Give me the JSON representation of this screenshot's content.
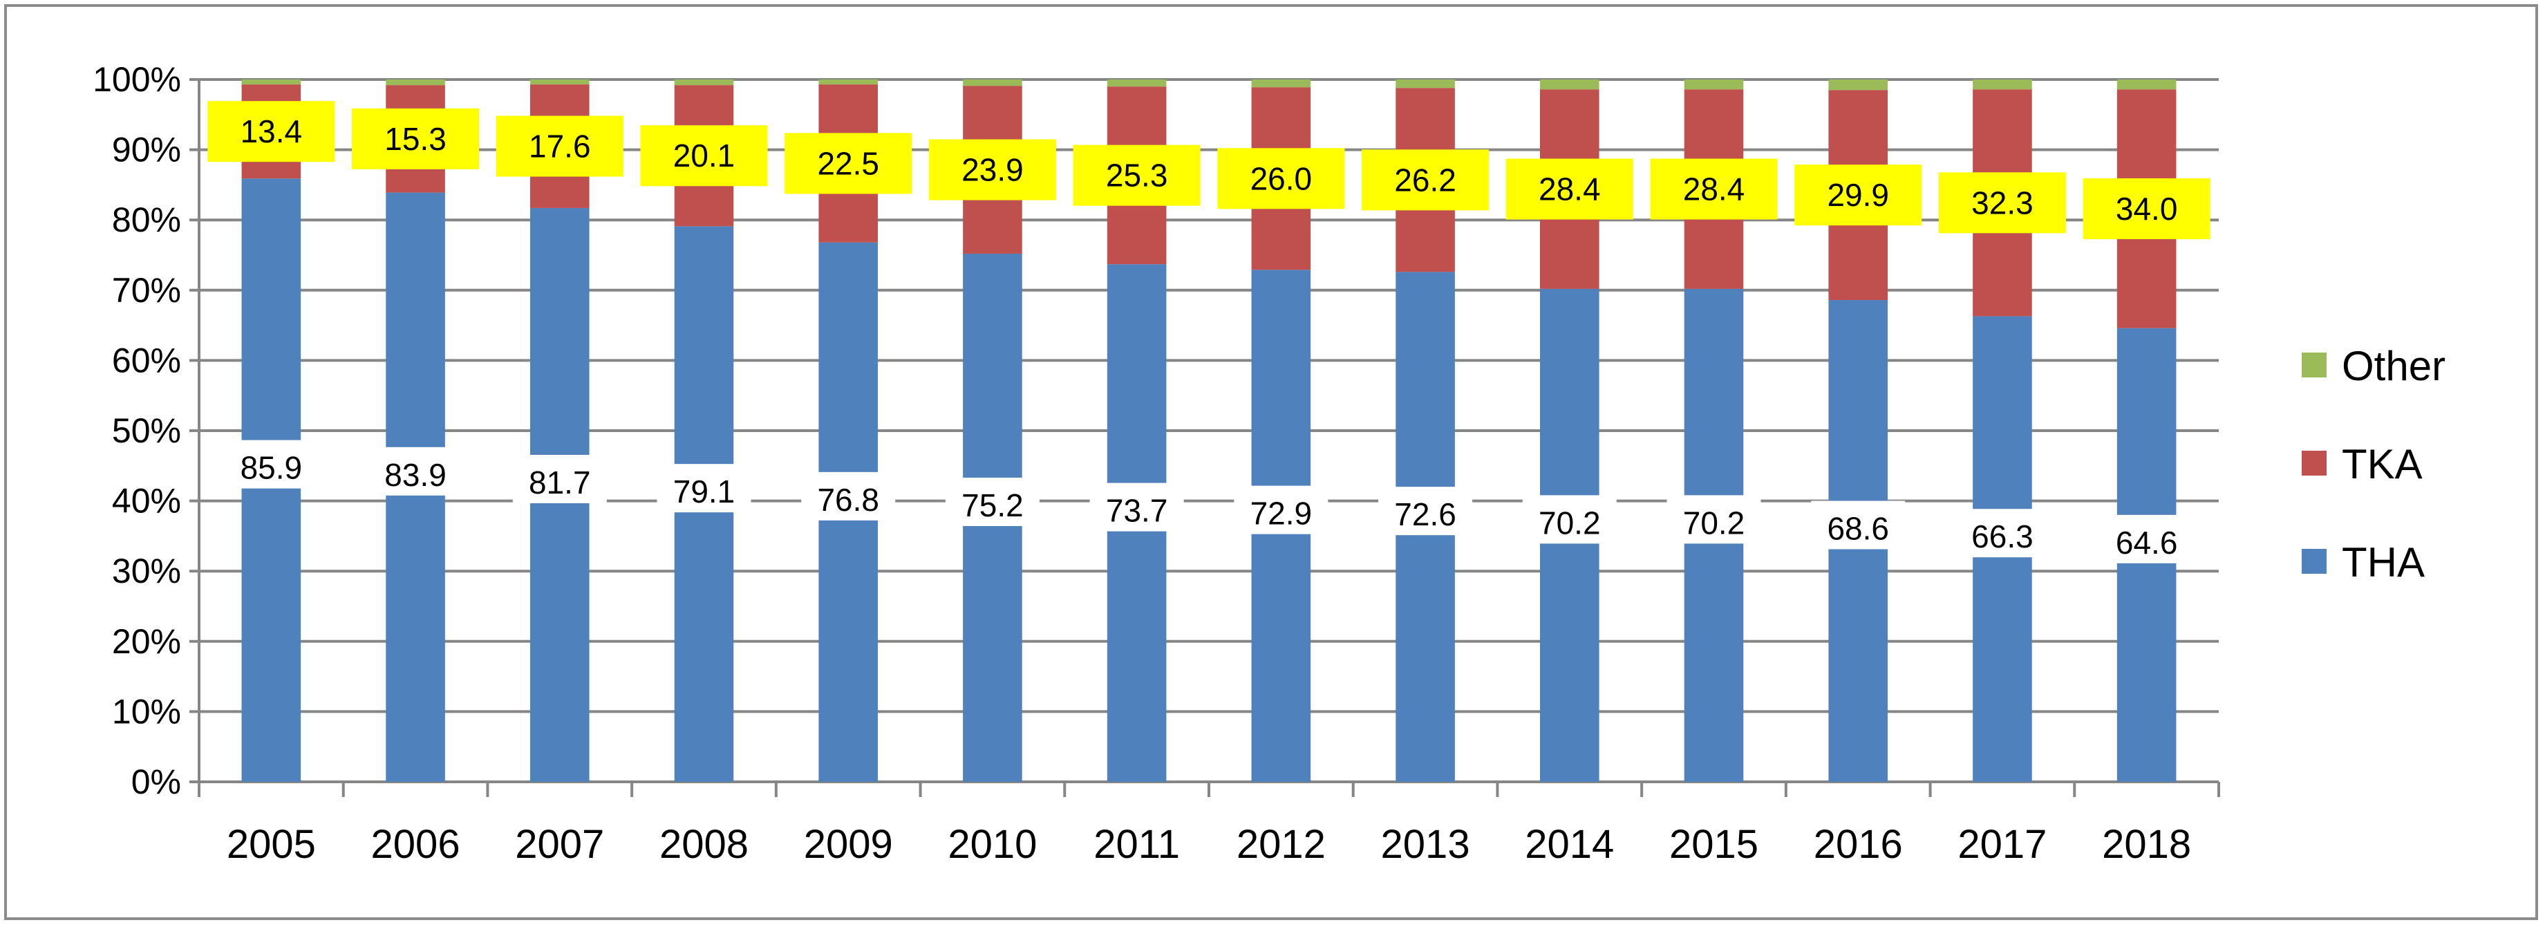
{
  "chart_data": {
    "type": "bar",
    "stacked": true,
    "percent_stacked": true,
    "categories": [
      "2005",
      "2006",
      "2007",
      "2008",
      "2009",
      "2010",
      "2011",
      "2012",
      "2013",
      "2014",
      "2015",
      "2016",
      "2017",
      "2018"
    ],
    "series": [
      {
        "name": "THA",
        "color": "#4f81bd",
        "values": [
          85.9,
          83.9,
          81.7,
          79.1,
          76.8,
          75.2,
          73.7,
          72.9,
          72.6,
          70.2,
          70.2,
          68.6,
          66.3,
          64.6
        ]
      },
      {
        "name": "TKA",
        "color": "#c0504d",
        "values": [
          13.4,
          15.3,
          17.6,
          20.1,
          22.5,
          23.9,
          25.3,
          26.0,
          26.2,
          28.4,
          28.4,
          29.9,
          32.3,
          34.0
        ]
      },
      {
        "name": "Other",
        "color": "#9bbb59",
        "values": [
          0.7,
          0.8,
          0.7,
          0.8,
          0.7,
          0.9,
          1.0,
          1.1,
          1.2,
          1.4,
          1.4,
          1.5,
          1.4,
          1.4
        ]
      }
    ],
    "data_labels": {
      "THA": [
        "85.9",
        "83.9",
        "81.7",
        "79.1",
        "76.8",
        "75.2",
        "73.7",
        "72.9",
        "72.6",
        "70.2",
        "70.2",
        "68.6",
        "66.3",
        "64.6"
      ],
      "TKA": [
        "13.4",
        "15.3",
        "17.6",
        "20.1",
        "22.5",
        "23.9",
        "25.3",
        "26.0",
        "26.2",
        "28.4",
        "28.4",
        "29.9",
        "32.3",
        "34.0"
      ]
    },
    "tka_label_color": "#ffff00",
    "ylim": [
      0,
      100
    ],
    "yticks": [
      "0%",
      "10%",
      "20%",
      "30%",
      "40%",
      "50%",
      "60%",
      "70%",
      "80%",
      "90%",
      "100%"
    ],
    "grid": true,
    "legend": {
      "position": "right",
      "items": [
        "Other",
        "TKA",
        "THA"
      ]
    },
    "title": "",
    "xlabel": "",
    "ylabel": ""
  }
}
